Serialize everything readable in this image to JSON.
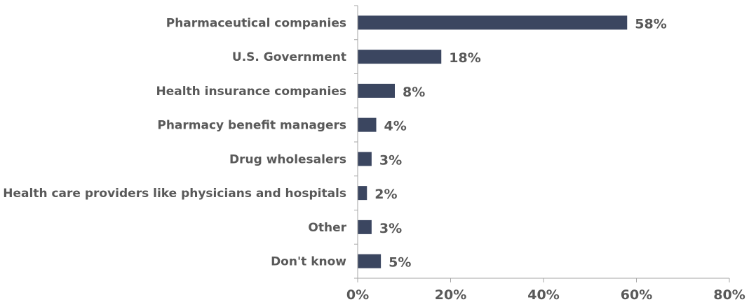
{
  "chart_data": {
    "type": "bar",
    "orientation": "horizontal",
    "title": "",
    "xlabel": "",
    "ylabel": "",
    "categories": [
      "Pharmaceutical companies",
      "U.S. Government",
      "Health insurance companies",
      "Pharmacy benefit managers",
      "Drug wholesalers",
      "Health care providers like physicians and hospitals",
      "Other",
      "Don't know"
    ],
    "values": [
      58,
      18,
      8,
      4,
      3,
      2,
      3,
      5
    ],
    "value_labels": [
      "58%",
      "18%",
      "8%",
      "4%",
      "3%",
      "2%",
      "3%",
      "5%"
    ],
    "xlim": [
      0,
      80
    ],
    "xticks": [
      0,
      20,
      40,
      60,
      80
    ],
    "xtick_labels": [
      "0%",
      "20%",
      "40%",
      "60%",
      "80%"
    ],
    "grid": false,
    "legend": "none",
    "colors": {
      "bar": "#3b4660",
      "text": "#595959",
      "axis": "#a6a6a6"
    }
  }
}
